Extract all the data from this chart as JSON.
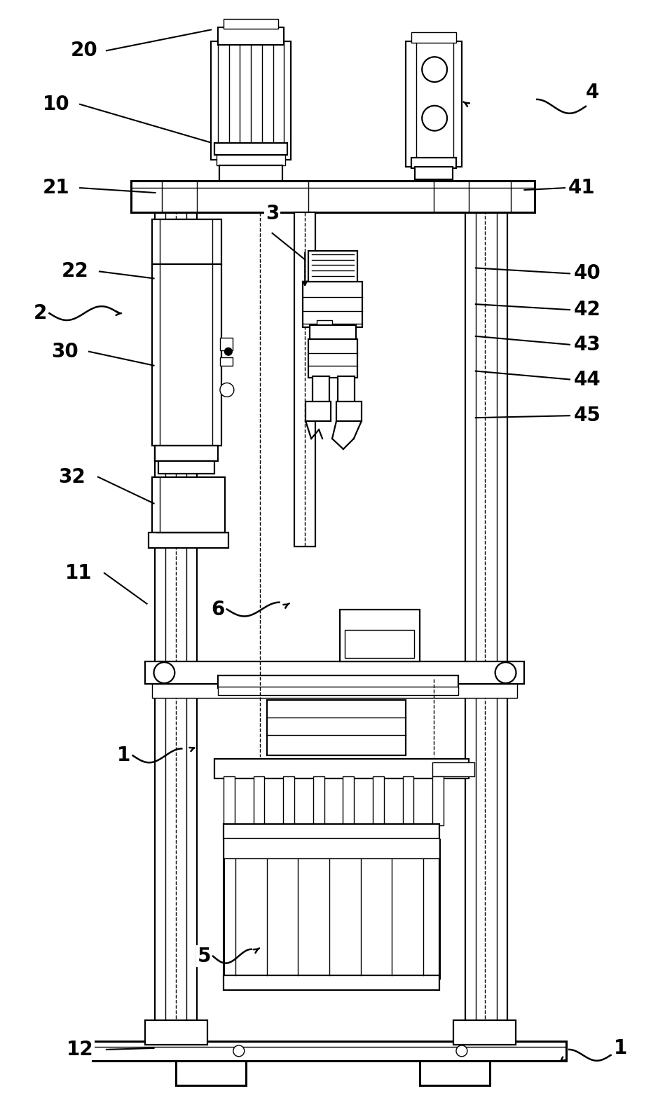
{
  "bg_color": "#ffffff",
  "line_color": "#000000",
  "fig_width": 9.49,
  "fig_height": 15.97,
  "lw_main": 2.2,
  "lw_med": 1.6,
  "lw_thin": 1.0,
  "lw_xtra": 0.7
}
